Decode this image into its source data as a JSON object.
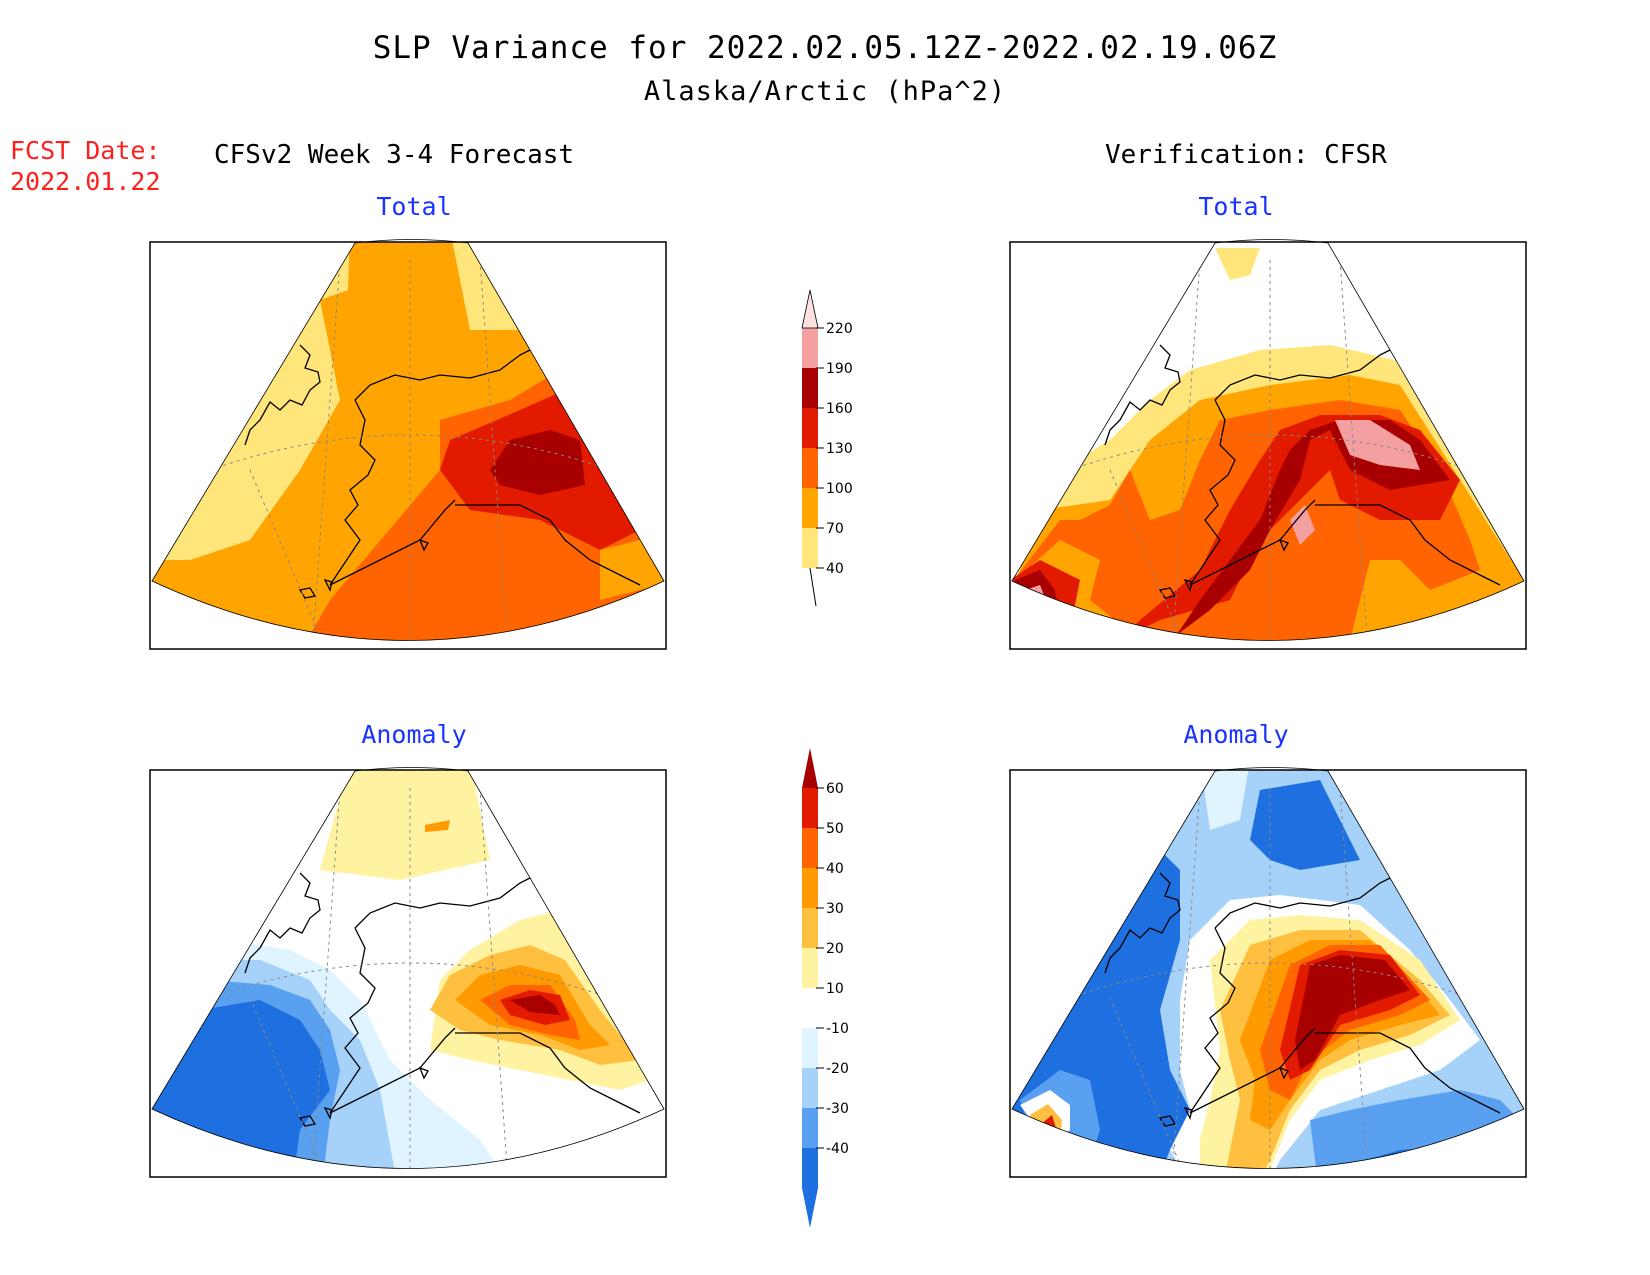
{
  "title": {
    "line1": "SLP Variance for 2022.02.05.12Z-2022.02.19.06Z",
    "line2": "Alaska/Arctic (hPa^2)"
  },
  "fcst": {
    "label": "FCST Date:",
    "date": "2022.01.22"
  },
  "columns": {
    "left": "CFSv2 Week 3-4 Forecast",
    "right": "Verification: CFSR"
  },
  "panels": {
    "top_left": "Total",
    "top_right": "Total",
    "bottom_left": "Anomaly",
    "bottom_right": "Anomaly"
  },
  "colorbars": {
    "total": {
      "labels": [
        "40",
        "70",
        "100",
        "130",
        "160",
        "190",
        "220"
      ],
      "colors": [
        "#ffe57a",
        "#ffa400",
        "#ff6400",
        "#e21b00",
        "#a80000",
        "#f5a0a0",
        "#fde0e0"
      ]
    },
    "anomaly": {
      "labels": [
        "-40",
        "-30",
        "-20",
        "-10",
        "10",
        "20",
        "30",
        "40",
        "50",
        "60"
      ],
      "colors": [
        "#1e6fe0",
        "#5aa0f0",
        "#a6d2fa",
        "#dff4ff",
        "#ffffff",
        "#fff2a0",
        "#ffc040",
        "#ff9a00",
        "#ff6400",
        "#e21b00",
        "#a80000"
      ]
    }
  },
  "colors": {
    "total_1": "#ffe57a",
    "total_2": "#ffa400",
    "total_3": "#ff6400",
    "total_4": "#e21b00",
    "total_5": "#a80000",
    "total_6": "#f5a0a0",
    "anom_neg40": "#1e6fe0",
    "anom_neg30": "#5aa0f0",
    "anom_neg20": "#a6d2fa",
    "anom_neg10": "#dff4ff",
    "anom_10": "#fff2a0",
    "anom_20": "#ffc040",
    "anom_30": "#ff9a00",
    "anom_40": "#ff6400",
    "anom_50": "#e21b00",
    "anom_60": "#a80000",
    "title_red": "#ff1e1e",
    "subtitle_blue": "#1a33ff"
  }
}
